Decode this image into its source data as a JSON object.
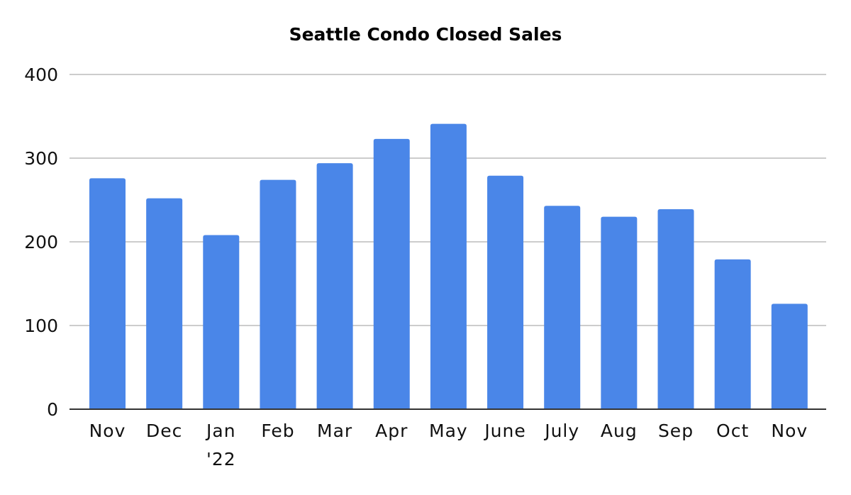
{
  "chart_data": {
    "type": "bar",
    "title": "Seattle Condo Closed Sales",
    "xlabel": "",
    "ylabel": "",
    "categories": [
      [
        "Nov"
      ],
      [
        "Dec"
      ],
      [
        "Jan",
        "'22"
      ],
      [
        "Feb"
      ],
      [
        "Mar"
      ],
      [
        "Apr"
      ],
      [
        "May"
      ],
      [
        "June"
      ],
      [
        "July"
      ],
      [
        "Aug"
      ],
      [
        "Sep"
      ],
      [
        "Oct"
      ],
      [
        "Nov"
      ]
    ],
    "values": [
      276,
      252,
      208,
      274,
      294,
      323,
      341,
      279,
      243,
      230,
      239,
      179,
      126
    ],
    "ylim": [
      0,
      400
    ],
    "yticks": [
      0,
      100,
      200,
      300,
      400
    ],
    "grid": true,
    "legend": "none",
    "colors": {
      "bar": "#4A86E8",
      "grid": "#CCCCCC",
      "axis": "#333333",
      "text": "#111111"
    }
  }
}
